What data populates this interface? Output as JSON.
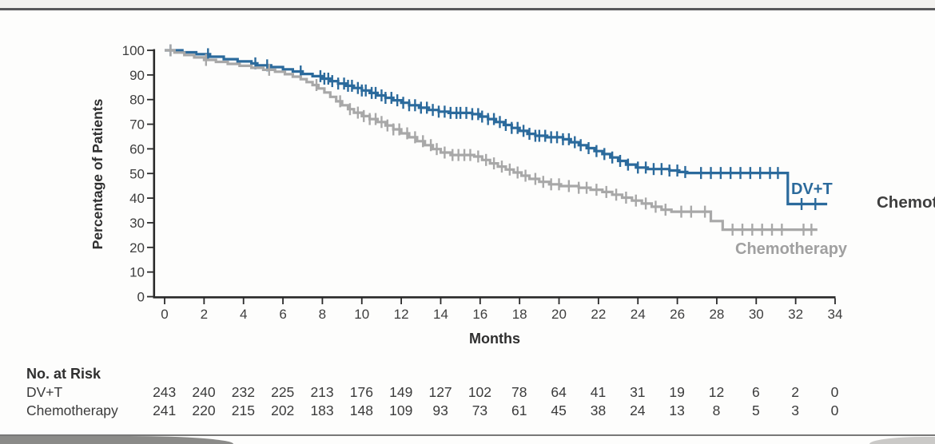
{
  "labels": {
    "right_edge_partial": "Chemot"
  },
  "colors": {
    "accent_blue": "#2b6a9c",
    "curve_gray": "#a8a8a8",
    "axis": "#2a2a2a",
    "tick_text": "#3e3e3e",
    "rule_top": "#59595b",
    "rule_bottom": "#787878",
    "strip_bg": "#f3f2ef",
    "corner_left": "#8b8b89",
    "corner_right": "#cac9c7"
  },
  "chart_data": {
    "type": "line",
    "subtype": "kaplan-meier-step",
    "title": "",
    "xlabel": "Months",
    "ylabel": "Percentage of Patients",
    "xlim": [
      0,
      34
    ],
    "ylim": [
      0,
      100
    ],
    "xticks": [
      0,
      2,
      4,
      6,
      8,
      10,
      12,
      14,
      16,
      18,
      20,
      22,
      24,
      26,
      28,
      30,
      32,
      34
    ],
    "yticks": [
      0,
      10,
      20,
      30,
      40,
      50,
      60,
      70,
      80,
      90,
      100
    ],
    "grid": false,
    "legend_position": "inline-curve-labels",
    "series": [
      {
        "name": "DV+T",
        "color": "#2b6a9c",
        "steps": [
          [
            0,
            100
          ],
          [
            0.9,
            99.2
          ],
          [
            1.6,
            98.4
          ],
          [
            2.3,
            97.4
          ],
          [
            3.0,
            96.4
          ],
          [
            3.7,
            95.5
          ],
          [
            4.4,
            94.7
          ],
          [
            4.7,
            93.9
          ],
          [
            5.4,
            93.2
          ],
          [
            6.0,
            92.3
          ],
          [
            6.5,
            91.4
          ],
          [
            7.0,
            90.4
          ],
          [
            7.5,
            89.5
          ],
          [
            8.0,
            88.5
          ],
          [
            8.4,
            87.5
          ],
          [
            8.8,
            86.5
          ],
          [
            9.2,
            85.6
          ],
          [
            9.6,
            84.7
          ],
          [
            10.0,
            83.7
          ],
          [
            10.4,
            82.7
          ],
          [
            10.8,
            81.7
          ],
          [
            11.2,
            80.7
          ],
          [
            11.6,
            79.7
          ],
          [
            12.0,
            78.7
          ],
          [
            12.4,
            77.7
          ],
          [
            12.9,
            76.7
          ],
          [
            13.4,
            75.8
          ],
          [
            13.9,
            75.1
          ],
          [
            14.4,
            74.6
          ],
          [
            15.6,
            74.1
          ],
          [
            16.0,
            73.1
          ],
          [
            16.4,
            72.1
          ],
          [
            16.8,
            70.9
          ],
          [
            17.2,
            69.7
          ],
          [
            17.6,
            68.5
          ],
          [
            18.0,
            67.3
          ],
          [
            18.4,
            66.1
          ],
          [
            18.8,
            65.3
          ],
          [
            19.4,
            64.7
          ],
          [
            20.2,
            63.9
          ],
          [
            20.6,
            62.7
          ],
          [
            21.0,
            61.5
          ],
          [
            21.4,
            60.3
          ],
          [
            21.8,
            59.1
          ],
          [
            22.2,
            57.9
          ],
          [
            22.6,
            56.5
          ],
          [
            23.0,
            55.1
          ],
          [
            23.4,
            53.6
          ],
          [
            23.9,
            52.4
          ],
          [
            24.5,
            51.8
          ],
          [
            25.6,
            51.2
          ],
          [
            26.1,
            50.6
          ],
          [
            26.5,
            50.2
          ],
          [
            31.6,
            37.6
          ],
          [
            33.6,
            37.6
          ]
        ],
        "censors": [
          0.3,
          2.2,
          4.6,
          5.2,
          6.9,
          7.9,
          8.1,
          8.3,
          8.5,
          8.8,
          9.1,
          9.3,
          9.5,
          9.8,
          10.0,
          10.2,
          10.5,
          10.7,
          11.0,
          11.2,
          11.5,
          11.8,
          12.1,
          12.4,
          12.7,
          13.0,
          13.3,
          13.6,
          13.9,
          14.2,
          14.5,
          14.8,
          15.0,
          15.3,
          15.6,
          15.9,
          16.1,
          16.4,
          16.7,
          17.0,
          17.3,
          17.6,
          17.9,
          18.2,
          18.5,
          18.8,
          19.0,
          19.3,
          19.6,
          19.9,
          20.2,
          20.5,
          20.8,
          21.1,
          21.5,
          21.9,
          22.3,
          22.7,
          23.1,
          23.5,
          24.0,
          24.4,
          24.8,
          25.2,
          25.6,
          26.0,
          26.4,
          27.2,
          27.7,
          28.2,
          28.7,
          29.2,
          29.7,
          30.2,
          30.7,
          31.1,
          32.3,
          33.0
        ]
      },
      {
        "name": "Chemotherapy",
        "color": "#a8a8a8",
        "steps": [
          [
            0,
            100
          ],
          [
            0.5,
            99.1
          ],
          [
            1.0,
            98.1
          ],
          [
            1.5,
            97.1
          ],
          [
            2.0,
            96.1
          ],
          [
            2.6,
            95.3
          ],
          [
            3.2,
            94.5
          ],
          [
            3.8,
            93.7
          ],
          [
            4.4,
            92.9
          ],
          [
            5.0,
            92.1
          ],
          [
            5.6,
            91.3
          ],
          [
            6.1,
            90.3
          ],
          [
            6.5,
            89.3
          ],
          [
            6.9,
            88.3
          ],
          [
            7.2,
            87.1
          ],
          [
            7.5,
            85.9
          ],
          [
            7.8,
            84.5
          ],
          [
            8.1,
            82.9
          ],
          [
            8.4,
            81.1
          ],
          [
            8.7,
            79.3
          ],
          [
            9.0,
            77.7
          ],
          [
            9.3,
            76.1
          ],
          [
            9.6,
            74.7
          ],
          [
            10.0,
            73.3
          ],
          [
            10.4,
            72.1
          ],
          [
            10.8,
            70.9
          ],
          [
            11.2,
            69.5
          ],
          [
            11.6,
            67.9
          ],
          [
            12.0,
            66.3
          ],
          [
            12.4,
            64.7
          ],
          [
            12.8,
            63.1
          ],
          [
            13.2,
            61.5
          ],
          [
            13.6,
            59.9
          ],
          [
            14.0,
            58.5
          ],
          [
            14.5,
            57.5
          ],
          [
            15.7,
            56.9
          ],
          [
            16.1,
            55.5
          ],
          [
            16.5,
            54.1
          ],
          [
            16.9,
            52.8
          ],
          [
            17.3,
            51.6
          ],
          [
            17.7,
            50.4
          ],
          [
            18.1,
            49.1
          ],
          [
            18.5,
            47.8
          ],
          [
            19.0,
            46.6
          ],
          [
            19.5,
            45.6
          ],
          [
            20.1,
            44.9
          ],
          [
            21.0,
            44.2
          ],
          [
            21.6,
            43.4
          ],
          [
            22.2,
            42.5
          ],
          [
            22.7,
            41.4
          ],
          [
            23.2,
            40.2
          ],
          [
            23.7,
            39.0
          ],
          [
            24.2,
            37.8
          ],
          [
            24.7,
            36.5
          ],
          [
            25.2,
            35.3
          ],
          [
            25.7,
            34.5
          ],
          [
            27.7,
            30.7
          ],
          [
            28.3,
            27.2
          ],
          [
            33.1,
            27.2
          ]
        ],
        "censors": [
          0.3,
          2.1,
          5.3,
          7.7,
          8.9,
          9.4,
          9.8,
          10.1,
          10.4,
          10.7,
          11.0,
          11.3,
          11.6,
          11.9,
          12.3,
          12.7,
          13.1,
          13.5,
          13.8,
          14.2,
          14.6,
          14.9,
          15.2,
          15.5,
          15.9,
          16.3,
          16.7,
          17.1,
          17.5,
          17.9,
          18.3,
          18.8,
          19.2,
          19.6,
          20.0,
          20.5,
          21.0,
          21.4,
          21.9,
          22.4,
          22.9,
          23.4,
          23.9,
          24.4,
          24.9,
          25.4,
          26.2,
          26.7,
          27.4,
          28.8,
          29.3,
          29.8,
          30.3,
          30.8,
          31.3,
          32.4,
          32.8
        ]
      }
    ],
    "at_risk": {
      "title": "No. at Risk",
      "times": [
        0,
        2,
        4,
        6,
        8,
        10,
        12,
        14,
        16,
        18,
        20,
        22,
        24,
        26,
        28,
        30,
        32,
        34
      ],
      "rows": [
        {
          "label": "DV+T",
          "values": [
            243,
            240,
            232,
            225,
            213,
            176,
            149,
            127,
            102,
            78,
            64,
            41,
            31,
            19,
            12,
            6,
            2,
            0
          ]
        },
        {
          "label": "Chemotherapy",
          "values": [
            241,
            220,
            215,
            202,
            183,
            148,
            109,
            93,
            73,
            61,
            45,
            38,
            24,
            13,
            8,
            5,
            3,
            0
          ]
        }
      ]
    }
  }
}
